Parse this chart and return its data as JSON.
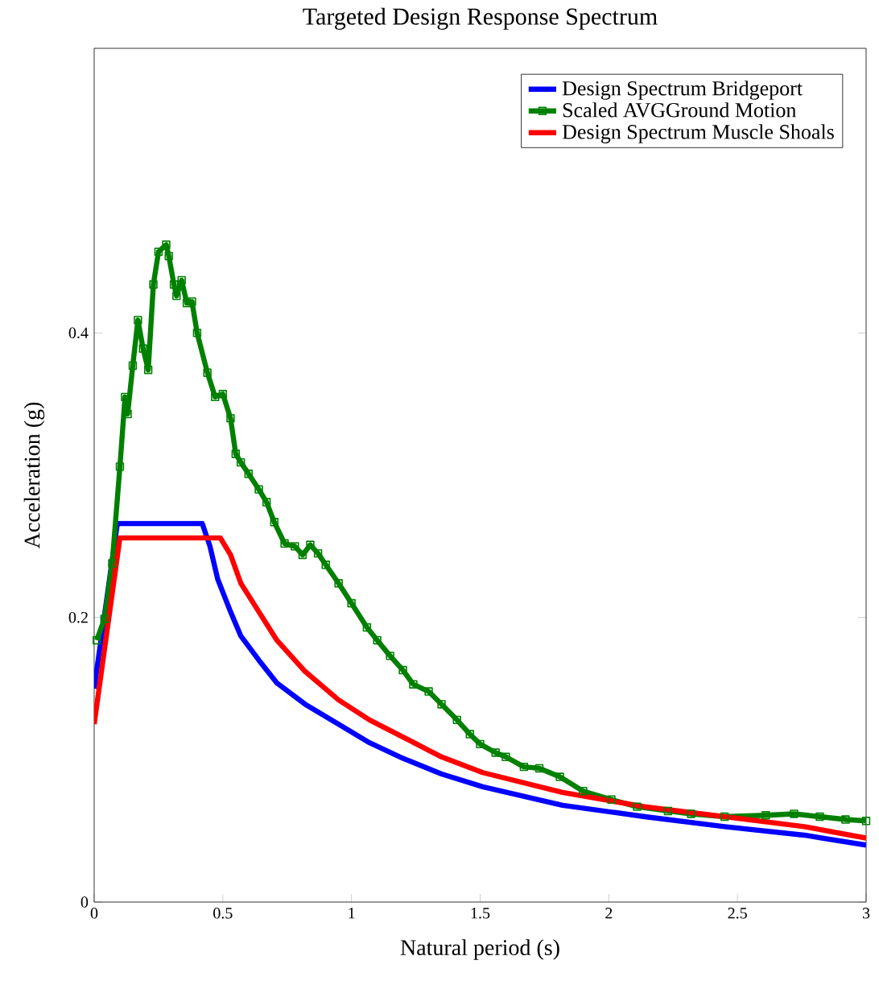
{
  "chart_data": {
    "type": "line",
    "title": "Targeted Design Response Spectrum",
    "xlabel": "Natural period (s)",
    "ylabel": "Acceleration (g)",
    "xlim": [
      0,
      3
    ],
    "ylim": [
      0,
      0.6
    ],
    "xticks": [
      0,
      0.5,
      1,
      1.5,
      2,
      2.5,
      3
    ],
    "yticks": [
      0,
      0.2,
      0.4
    ],
    "legend": "top right",
    "grid": false,
    "series": [
      {
        "name": "Design Spectrum Bridgeport",
        "color": "#0000ff",
        "marker": "none",
        "x": [
          0,
          0.09,
          0.42,
          0.45,
          0.48,
          0.53,
          0.57,
          0.64,
          0.71,
          0.82,
          0.95,
          1.07,
          1.2,
          1.35,
          1.51,
          1.82,
          2.14,
          2.45,
          2.76,
          3.0
        ],
        "values": [
          0.15,
          0.266,
          0.266,
          0.25,
          0.227,
          0.204,
          0.187,
          0.17,
          0.154,
          0.139,
          0.125,
          0.112,
          0.101,
          0.09,
          0.081,
          0.068,
          0.06,
          0.053,
          0.047,
          0.04
        ]
      },
      {
        "name": "Scaled AVGGround Motion",
        "color": "#008000",
        "marker": "square",
        "x": [
          0.01,
          0.04,
          0.07,
          0.1,
          0.12,
          0.13,
          0.15,
          0.17,
          0.19,
          0.21,
          0.23,
          0.25,
          0.28,
          0.29,
          0.31,
          0.32,
          0.34,
          0.36,
          0.38,
          0.4,
          0.44,
          0.47,
          0.5,
          0.53,
          0.55,
          0.57,
          0.6,
          0.64,
          0.67,
          0.7,
          0.74,
          0.78,
          0.81,
          0.84,
          0.87,
          0.9,
          0.95,
          1.0,
          1.06,
          1.1,
          1.15,
          1.2,
          1.24,
          1.3,
          1.35,
          1.41,
          1.46,
          1.5,
          1.56,
          1.6,
          1.67,
          1.73,
          1.81,
          1.9,
          2.01,
          2.11,
          2.23,
          2.32,
          2.45,
          2.61,
          2.72,
          2.82,
          2.92,
          3.0
        ],
        "values": [
          0.184,
          0.199,
          0.238,
          0.306,
          0.355,
          0.343,
          0.377,
          0.409,
          0.389,
          0.374,
          0.434,
          0.457,
          0.462,
          0.454,
          0.434,
          0.426,
          0.437,
          0.421,
          0.422,
          0.4,
          0.372,
          0.355,
          0.357,
          0.34,
          0.315,
          0.309,
          0.301,
          0.29,
          0.281,
          0.267,
          0.252,
          0.25,
          0.244,
          0.251,
          0.245,
          0.237,
          0.224,
          0.21,
          0.193,
          0.184,
          0.173,
          0.163,
          0.153,
          0.148,
          0.139,
          0.128,
          0.118,
          0.111,
          0.105,
          0.102,
          0.095,
          0.094,
          0.088,
          0.078,
          0.072,
          0.067,
          0.064,
          0.062,
          0.06,
          0.061,
          0.062,
          0.06,
          0.058,
          0.057
        ]
      },
      {
        "name": "Design Spectrum Muscle Shoals",
        "color": "#ff0000",
        "marker": "none",
        "x": [
          0,
          0.1,
          0.49,
          0.53,
          0.57,
          0.64,
          0.71,
          0.82,
          0.95,
          1.07,
          1.2,
          1.35,
          1.51,
          1.82,
          2.14,
          2.45,
          2.76,
          3.0
        ],
        "values": [
          0.125,
          0.256,
          0.256,
          0.244,
          0.224,
          0.204,
          0.184,
          0.162,
          0.142,
          0.128,
          0.116,
          0.102,
          0.091,
          0.077,
          0.067,
          0.06,
          0.053,
          0.045
        ]
      }
    ]
  }
}
